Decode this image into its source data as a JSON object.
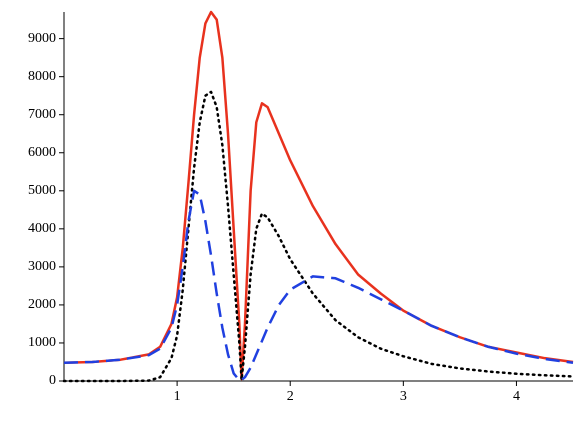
{
  "chart_data": {
    "type": "line",
    "x": [
      0.0,
      0.25,
      0.5,
      0.75,
      0.85,
      0.95,
      1.0,
      1.05,
      1.1,
      1.15,
      1.2,
      1.25,
      1.3,
      1.35,
      1.4,
      1.45,
      1.5,
      1.55,
      1.57,
      1.6,
      1.65,
      1.7,
      1.75,
      1.8,
      1.9,
      2.0,
      2.2,
      2.4,
      2.6,
      2.8,
      3.0,
      3.25,
      3.5,
      3.75,
      4.0,
      4.25,
      4.5
    ],
    "series": [
      {
        "color": "#e8321e",
        "style": "solid",
        "values": [
          480,
          500,
          560,
          700,
          900,
          1500,
          2200,
          3500,
          5200,
          7000,
          8500,
          9400,
          9700,
          9500,
          8500,
          6500,
          4000,
          1500,
          50,
          1500,
          5000,
          6800,
          7300,
          7200,
          6500,
          5800,
          4600,
          3600,
          2800,
          2300,
          1850,
          1450,
          1150,
          900,
          750,
          600,
          500
        ]
      },
      {
        "color": "#000000",
        "style": "dotted",
        "values": [
          0,
          0,
          0,
          10,
          100,
          600,
          1200,
          2400,
          4000,
          5600,
          6800,
          7500,
          7600,
          7200,
          6200,
          4600,
          2800,
          1000,
          30,
          900,
          2800,
          4000,
          4400,
          4300,
          3800,
          3200,
          2300,
          1600,
          1150,
          850,
          650,
          450,
          330,
          250,
          190,
          150,
          120
        ]
      },
      {
        "color": "#2040e0",
        "style": "dashed",
        "values": [
          480,
          500,
          560,
          680,
          850,
          1400,
          2000,
          3000,
          4200,
          5000,
          4900,
          4200,
          3300,
          2300,
          1400,
          700,
          200,
          20,
          30,
          100,
          350,
          700,
          1050,
          1400,
          2000,
          2400,
          2750,
          2700,
          2450,
          2150,
          1850,
          1450,
          1150,
          900,
          720,
          580,
          480
        ]
      }
    ],
    "xlim": [
      0,
      4.5
    ],
    "ylim": [
      0,
      9700
    ],
    "xticks": [
      1,
      2,
      3,
      4
    ],
    "yticks": [
      0,
      1000,
      2000,
      3000,
      4000,
      5000,
      6000,
      7000,
      8000,
      9000
    ],
    "grid": false
  }
}
